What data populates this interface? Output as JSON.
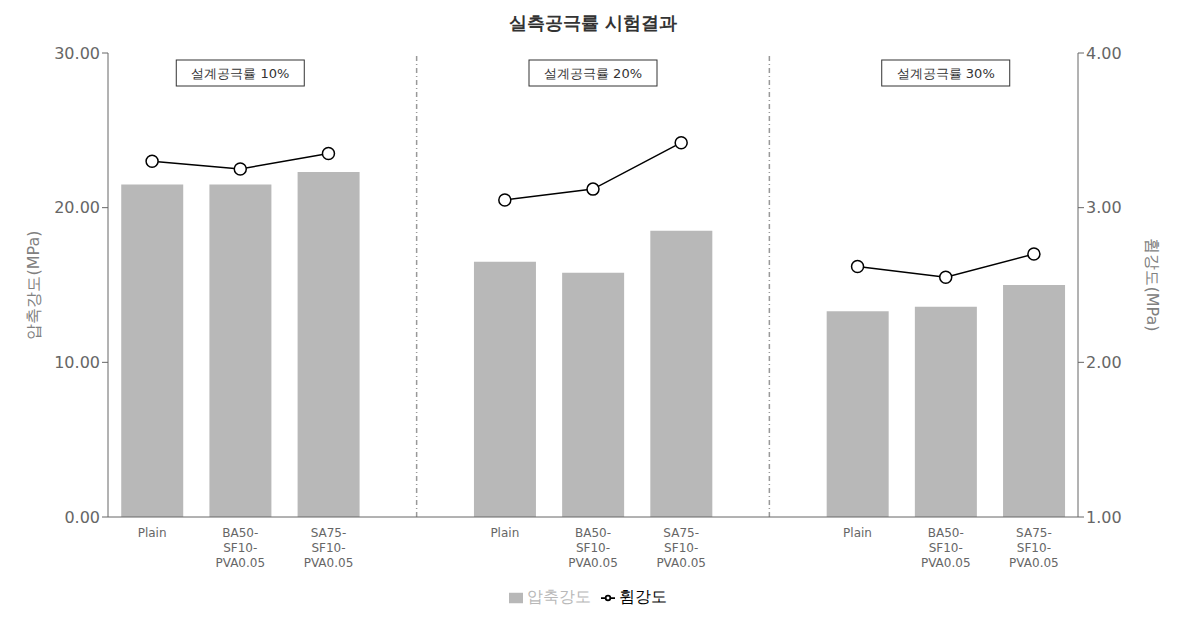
{
  "chart_data": {
    "type": "bar",
    "title": "실측공극률  시험결과",
    "groups": [
      "설계공극률 10%",
      "설계공극률 20%",
      "설계공극률 30%"
    ],
    "categories": [
      "Plain",
      "BA50-\nSF10-\nPVA0.05",
      "SA75-\nSF10-\nPVA0.05"
    ],
    "series": [
      {
        "name": "압축강도",
        "type": "bar",
        "color": "#b8b8b8",
        "values": [
          [
            21.5,
            21.5,
            22.3
          ],
          [
            16.5,
            15.8,
            18.5
          ],
          [
            13.3,
            13.6,
            15.0
          ]
        ]
      },
      {
        "name": "휨강도",
        "type": "line",
        "axis": "y2",
        "color": "#000000",
        "marker": "circle",
        "values": [
          [
            3.3,
            3.25,
            3.35
          ],
          [
            3.05,
            3.12,
            3.42
          ],
          [
            2.62,
            2.55,
            2.7
          ]
        ]
      }
    ],
    "ylabel": "압축강도(MPa)",
    "y2label": "휨강도(MPa)",
    "ylim": [
      0,
      30
    ],
    "yticks": [
      {
        "value": 0,
        "label": "0.00"
      },
      {
        "value": 10,
        "label": "10.00"
      },
      {
        "value": 20,
        "label": "20.00"
      },
      {
        "value": 30,
        "label": "30.00"
      }
    ],
    "y2lim": [
      1.0,
      4.0
    ],
    "y2ticks": [
      {
        "value": 1,
        "label": "1.00"
      },
      {
        "value": 2,
        "label": "2.00"
      },
      {
        "value": 3,
        "label": "3.00"
      },
      {
        "value": 4,
        "label": "4.00"
      }
    ],
    "grid": false,
    "legend": "bottom"
  }
}
